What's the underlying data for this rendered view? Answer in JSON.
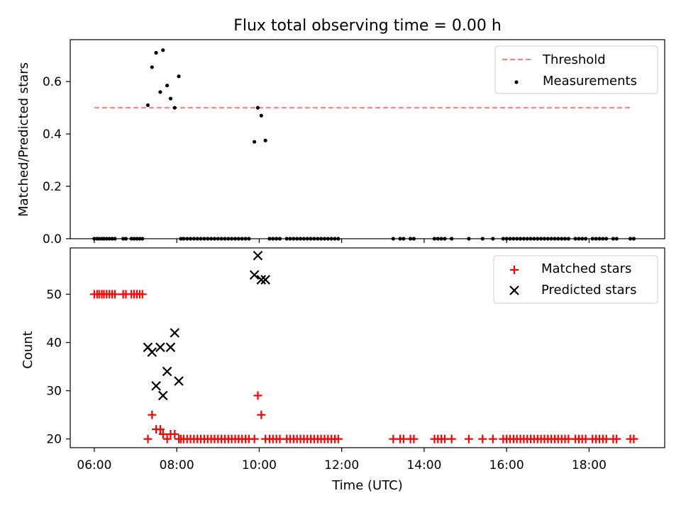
{
  "chart_data": [
    {
      "type": "scatter",
      "title": "Flux total observing time = 0.00 h",
      "ylabel": "Matched/Predicted stars",
      "xlabel": "",
      "xlim": [
        "05:25",
        "19:50"
      ],
      "ylim": [
        0,
        0.76
      ],
      "yticks": [
        0.0,
        0.2,
        0.4,
        0.6
      ],
      "xticks": [
        "06:00",
        "08:00",
        "10:00",
        "12:00",
        "14:00",
        "16:00",
        "18:00"
      ],
      "legend_position": "top-right",
      "threshold": {
        "name": "Threshold",
        "value": 0.5,
        "x": [
          "06:00",
          "19:00"
        ],
        "color": "#ff7f7f",
        "style": "dashed"
      },
      "series": [
        {
          "name": "Measurements",
          "color": "#000000",
          "marker": "dot",
          "points": [
            [
              "06:00",
              0.0
            ],
            [
              "06:04",
              0.0
            ],
            [
              "06:07",
              0.0
            ],
            [
              "06:11",
              0.0
            ],
            [
              "06:14",
              0.0
            ],
            [
              "06:18",
              0.0
            ],
            [
              "06:22",
              0.0
            ],
            [
              "06:26",
              0.0
            ],
            [
              "06:30",
              0.0
            ],
            [
              "06:42",
              0.0
            ],
            [
              "06:46",
              0.0
            ],
            [
              "06:54",
              0.0
            ],
            [
              "06:58",
              0.0
            ],
            [
              "07:02",
              0.0
            ],
            [
              "07:06",
              0.0
            ],
            [
              "07:10",
              0.0
            ],
            [
              "07:18",
              0.51
            ],
            [
              "07:24",
              0.655
            ],
            [
              "07:30",
              0.71
            ],
            [
              "07:36",
              0.56
            ],
            [
              "07:40",
              0.72
            ],
            [
              "07:46",
              0.585
            ],
            [
              "07:51",
              0.535
            ],
            [
              "07:57",
              0.5
            ],
            [
              "08:03",
              0.62
            ],
            [
              "08:06",
              0.0
            ],
            [
              "08:10",
              0.0
            ],
            [
              "08:15",
              0.0
            ],
            [
              "08:20",
              0.0
            ],
            [
              "08:25",
              0.0
            ],
            [
              "08:30",
              0.0
            ],
            [
              "08:35",
              0.0
            ],
            [
              "08:40",
              0.0
            ],
            [
              "08:45",
              0.0
            ],
            [
              "08:50",
              0.0
            ],
            [
              "08:55",
              0.0
            ],
            [
              "09:00",
              0.0
            ],
            [
              "09:05",
              0.0
            ],
            [
              "09:10",
              0.0
            ],
            [
              "09:15",
              0.0
            ],
            [
              "09:20",
              0.0
            ],
            [
              "09:25",
              0.0
            ],
            [
              "09:30",
              0.0
            ],
            [
              "09:35",
              0.0
            ],
            [
              "09:40",
              0.0
            ],
            [
              "09:45",
              0.0
            ],
            [
              "09:53",
              0.37
            ],
            [
              "09:58",
              0.5
            ],
            [
              "10:03",
              0.47
            ],
            [
              "10:09",
              0.375
            ],
            [
              "10:15",
              0.0
            ],
            [
              "10:20",
              0.0
            ],
            [
              "10:25",
              0.0
            ],
            [
              "10:30",
              0.0
            ],
            [
              "10:40",
              0.0
            ],
            [
              "10:45",
              0.0
            ],
            [
              "10:50",
              0.0
            ],
            [
              "10:55",
              0.0
            ],
            [
              "11:00",
              0.0
            ],
            [
              "11:05",
              0.0
            ],
            [
              "11:10",
              0.0
            ],
            [
              "11:15",
              0.0
            ],
            [
              "11:20",
              0.0
            ],
            [
              "11:25",
              0.0
            ],
            [
              "11:30",
              0.0
            ],
            [
              "11:35",
              0.0
            ],
            [
              "11:40",
              0.0
            ],
            [
              "11:45",
              0.0
            ],
            [
              "11:50",
              0.0
            ],
            [
              "11:55",
              0.0
            ],
            [
              "13:15",
              0.0
            ],
            [
              "13:25",
              0.0
            ],
            [
              "13:30",
              0.0
            ],
            [
              "13:40",
              0.0
            ],
            [
              "13:45",
              0.0
            ],
            [
              "14:15",
              0.0
            ],
            [
              "14:20",
              0.0
            ],
            [
              "14:25",
              0.0
            ],
            [
              "14:30",
              0.0
            ],
            [
              "14:40",
              0.0
            ],
            [
              "15:05",
              0.0
            ],
            [
              "15:25",
              0.0
            ],
            [
              "15:40",
              0.0
            ],
            [
              "15:55",
              0.0
            ],
            [
              "16:00",
              0.0
            ],
            [
              "16:05",
              0.0
            ],
            [
              "16:10",
              0.0
            ],
            [
              "16:15",
              0.0
            ],
            [
              "16:20",
              0.0
            ],
            [
              "16:25",
              0.0
            ],
            [
              "16:30",
              0.0
            ],
            [
              "16:35",
              0.0
            ],
            [
              "16:40",
              0.0
            ],
            [
              "16:45",
              0.0
            ],
            [
              "16:50",
              0.0
            ],
            [
              "16:55",
              0.0
            ],
            [
              "17:00",
              0.0
            ],
            [
              "17:05",
              0.0
            ],
            [
              "17:10",
              0.0
            ],
            [
              "17:15",
              0.0
            ],
            [
              "17:20",
              0.0
            ],
            [
              "17:25",
              0.0
            ],
            [
              "17:30",
              0.0
            ],
            [
              "17:40",
              0.0
            ],
            [
              "17:45",
              0.0
            ],
            [
              "17:50",
              0.0
            ],
            [
              "17:55",
              0.0
            ],
            [
              "18:05",
              0.0
            ],
            [
              "18:10",
              0.0
            ],
            [
              "18:15",
              0.0
            ],
            [
              "18:20",
              0.0
            ],
            [
              "18:25",
              0.0
            ],
            [
              "18:35",
              0.0
            ],
            [
              "18:40",
              0.0
            ],
            [
              "19:00",
              0.0
            ],
            [
              "19:05",
              0.0
            ]
          ]
        }
      ]
    },
    {
      "type": "scatter",
      "title": "",
      "ylabel": "Count",
      "xlabel": "Time (UTC)",
      "xlim": [
        "05:25",
        "19:50"
      ],
      "ylim": [
        18.2,
        59.6
      ],
      "yticks": [
        20,
        30,
        40,
        50
      ],
      "xticks": [
        "06:00",
        "08:00",
        "10:00",
        "12:00",
        "14:00",
        "16:00",
        "18:00"
      ],
      "legend_position": "top-right",
      "series": [
        {
          "name": "Matched stars",
          "color": "#ff0000",
          "marker": "plus",
          "points": [
            [
              "06:00",
              50
            ],
            [
              "06:04",
              50
            ],
            [
              "06:07",
              50
            ],
            [
              "06:11",
              50
            ],
            [
              "06:14",
              50
            ],
            [
              "06:18",
              50
            ],
            [
              "06:22",
              50
            ],
            [
              "06:26",
              50
            ],
            [
              "06:30",
              50
            ],
            [
              "06:42",
              50
            ],
            [
              "06:46",
              50
            ],
            [
              "06:54",
              50
            ],
            [
              "06:58",
              50
            ],
            [
              "07:02",
              50
            ],
            [
              "07:06",
              50
            ],
            [
              "07:10",
              50
            ],
            [
              "07:18",
              20
            ],
            [
              "07:24",
              25
            ],
            [
              "07:30",
              22
            ],
            [
              "07:36",
              22
            ],
            [
              "07:40",
              21
            ],
            [
              "07:46",
              20
            ],
            [
              "07:51",
              21
            ],
            [
              "07:57",
              21
            ],
            [
              "08:03",
              20
            ],
            [
              "08:06",
              20
            ],
            [
              "08:10",
              20
            ],
            [
              "08:15",
              20
            ],
            [
              "08:20",
              20
            ],
            [
              "08:25",
              20
            ],
            [
              "08:30",
              20
            ],
            [
              "08:35",
              20
            ],
            [
              "08:40",
              20
            ],
            [
              "08:45",
              20
            ],
            [
              "08:50",
              20
            ],
            [
              "08:55",
              20
            ],
            [
              "09:00",
              20
            ],
            [
              "09:05",
              20
            ],
            [
              "09:10",
              20
            ],
            [
              "09:15",
              20
            ],
            [
              "09:20",
              20
            ],
            [
              "09:25",
              20
            ],
            [
              "09:30",
              20
            ],
            [
              "09:35",
              20
            ],
            [
              "09:40",
              20
            ],
            [
              "09:45",
              20
            ],
            [
              "09:53",
              20
            ],
            [
              "09:58",
              29
            ],
            [
              "10:03",
              25
            ],
            [
              "10:09",
              20
            ],
            [
              "10:15",
              20
            ],
            [
              "10:20",
              20
            ],
            [
              "10:25",
              20
            ],
            [
              "10:30",
              20
            ],
            [
              "10:40",
              20
            ],
            [
              "10:45",
              20
            ],
            [
              "10:50",
              20
            ],
            [
              "10:55",
              20
            ],
            [
              "11:00",
              20
            ],
            [
              "11:05",
              20
            ],
            [
              "11:10",
              20
            ],
            [
              "11:15",
              20
            ],
            [
              "11:20",
              20
            ],
            [
              "11:25",
              20
            ],
            [
              "11:30",
              20
            ],
            [
              "11:35",
              20
            ],
            [
              "11:40",
              20
            ],
            [
              "11:45",
              20
            ],
            [
              "11:50",
              20
            ],
            [
              "11:55",
              20
            ],
            [
              "13:15",
              20
            ],
            [
              "13:25",
              20
            ],
            [
              "13:30",
              20
            ],
            [
              "13:40",
              20
            ],
            [
              "13:45",
              20
            ],
            [
              "14:15",
              20
            ],
            [
              "14:20",
              20
            ],
            [
              "14:25",
              20
            ],
            [
              "14:30",
              20
            ],
            [
              "14:40",
              20
            ],
            [
              "15:05",
              20
            ],
            [
              "15:25",
              20
            ],
            [
              "15:40",
              20
            ],
            [
              "15:55",
              20
            ],
            [
              "16:00",
              20
            ],
            [
              "16:05",
              20
            ],
            [
              "16:10",
              20
            ],
            [
              "16:15",
              20
            ],
            [
              "16:20",
              20
            ],
            [
              "16:25",
              20
            ],
            [
              "16:30",
              20
            ],
            [
              "16:35",
              20
            ],
            [
              "16:40",
              20
            ],
            [
              "16:45",
              20
            ],
            [
              "16:50",
              20
            ],
            [
              "16:55",
              20
            ],
            [
              "17:00",
              20
            ],
            [
              "17:05",
              20
            ],
            [
              "17:10",
              20
            ],
            [
              "17:15",
              20
            ],
            [
              "17:20",
              20
            ],
            [
              "17:25",
              20
            ],
            [
              "17:30",
              20
            ],
            [
              "17:40",
              20
            ],
            [
              "17:45",
              20
            ],
            [
              "17:50",
              20
            ],
            [
              "17:55",
              20
            ],
            [
              "18:05",
              20
            ],
            [
              "18:10",
              20
            ],
            [
              "18:15",
              20
            ],
            [
              "18:20",
              20
            ],
            [
              "18:25",
              20
            ],
            [
              "18:35",
              20
            ],
            [
              "18:40",
              20
            ],
            [
              "19:00",
              20
            ],
            [
              "19:05",
              20
            ]
          ]
        },
        {
          "name": "Predicted stars",
          "color": "#000000",
          "marker": "x",
          "points": [
            [
              "07:18",
              39
            ],
            [
              "07:24",
              38
            ],
            [
              "07:30",
              31
            ],
            [
              "07:36",
              39
            ],
            [
              "07:40",
              29
            ],
            [
              "07:46",
              34
            ],
            [
              "07:51",
              39
            ],
            [
              "07:57",
              42
            ],
            [
              "08:03",
              32
            ],
            [
              "09:53",
              54
            ],
            [
              "09:58",
              58
            ],
            [
              "10:03",
              53
            ],
            [
              "10:09",
              53
            ]
          ]
        }
      ]
    }
  ]
}
